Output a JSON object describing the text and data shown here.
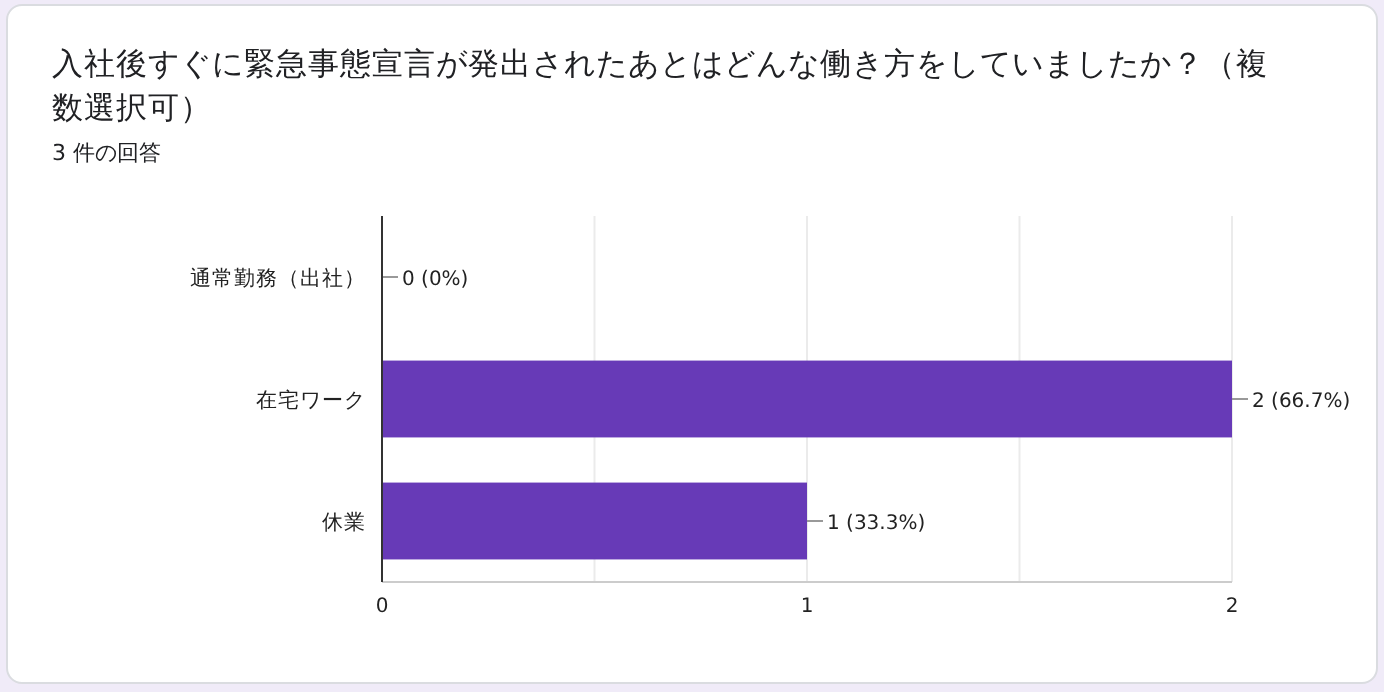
{
  "chart_data": {
    "type": "bar",
    "orientation": "horizontal",
    "title": "入社後すぐに緊急事態宣言が発出されたあとはどんな働き方をしていましたか？（複数選択可）",
    "subtitle": "3 件の回答",
    "categories": [
      "通常勤務（出社）",
      "在宅ワーク",
      "休業"
    ],
    "values": [
      0,
      2,
      1
    ],
    "color": "#673ab7",
    "value_labels": [
      "0 (0%)",
      "2 (66.7%)",
      "1 (33.3%)"
    ],
    "xlim": [
      0,
      2
    ],
    "xticks": [
      0,
      {
        "value": 0.5,
        "label": null
      },
      1,
      {
        "value": 1.5,
        "label": null
      },
      2
    ],
    "grid": "x"
  }
}
